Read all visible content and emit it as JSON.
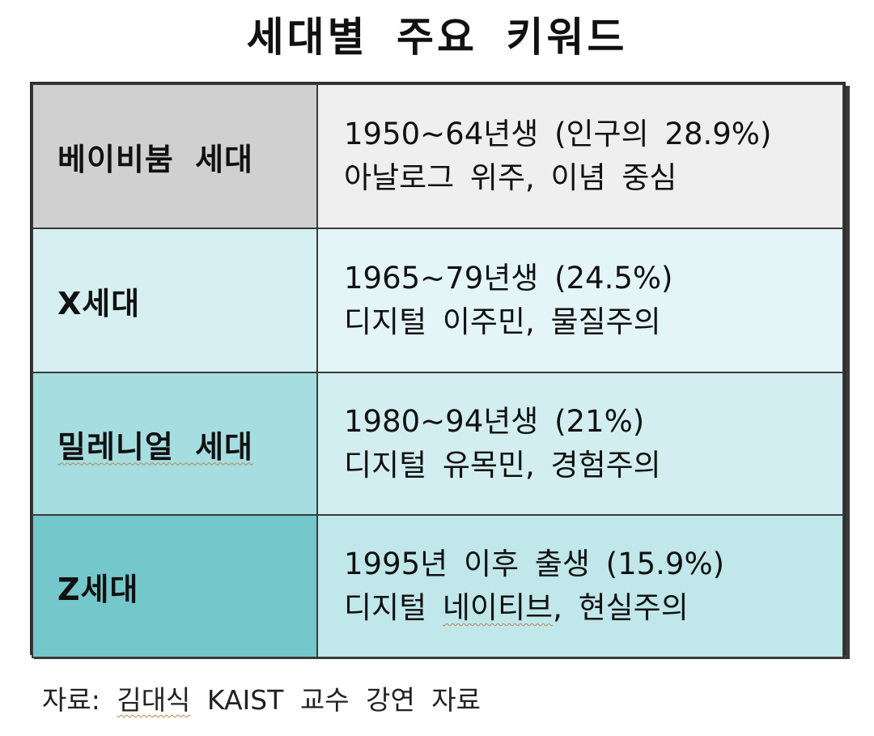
{
  "title": "세대별 주요 키워드",
  "rows": [
    {
      "generation": "베이비붐 세대",
      "period": "1950~64년생 (인구의 28.9%)",
      "keywords": "아날로그 위주, 이념 중심",
      "label_bg": "#d0d0d0",
      "desc_bg": "#efefef"
    },
    {
      "generation": "X세대",
      "period": "1965~79년생 (24.5%)",
      "keywords": "디지털 이주민, 물질주의",
      "label_bg": "#d6f0f2",
      "desc_bg": "#e4f5f7"
    },
    {
      "generation": "밀레니얼 세대",
      "period": "1980~94년생 (21%)",
      "keywords": "디지털 유목민, 경험주의",
      "label_bg": "#a6dde0",
      "desc_bg": "#d2eef0"
    },
    {
      "generation": "Z세대",
      "period": "1995년 이후 출생 (15.9%)",
      "keywords_parts": [
        "디지털 ",
        "네이티브",
        ", 현실주의"
      ],
      "label_bg": "#74c7cb",
      "desc_bg": "#c0e7ea"
    }
  ],
  "source_parts": [
    "자료: ",
    "김대식",
    " KAIST 교수 강연 자료"
  ]
}
